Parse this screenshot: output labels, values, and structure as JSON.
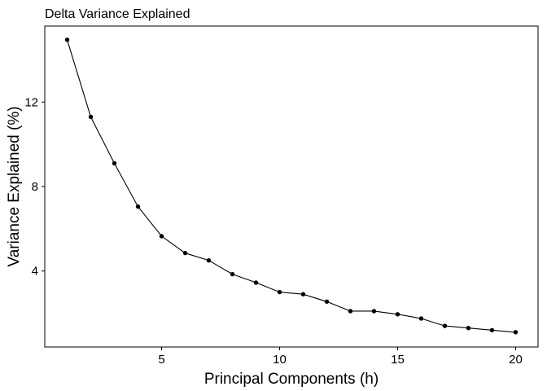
{
  "chart_data": {
    "type": "line",
    "title": "Delta Variance Explained",
    "xlabel": "Principal Components (h)",
    "ylabel": "Variance Explained (%)",
    "x": [
      1,
      2,
      3,
      4,
      5,
      6,
      7,
      8,
      9,
      10,
      11,
      12,
      13,
      14,
      15,
      16,
      17,
      18,
      19,
      20
    ],
    "series": [
      {
        "values": [
          14.95,
          11.3,
          9.1,
          7.05,
          5.65,
          4.85,
          4.5,
          3.85,
          3.45,
          3.0,
          2.9,
          2.55,
          2.1,
          2.1,
          1.95,
          1.75,
          1.4,
          1.3,
          1.2,
          1.1
        ]
      }
    ],
    "xlim": [
      0.05,
      20.95
    ],
    "ylim": [
      0.4,
      15.6
    ],
    "xticks": [
      5,
      10,
      15,
      20
    ],
    "yticks": [
      4,
      8,
      12
    ],
    "xtick_labels": [
      "5",
      "10",
      "15",
      "20"
    ],
    "ytick_labels": [
      "4",
      "8",
      "12"
    ],
    "grid": false,
    "line_color": "#000000",
    "point_color": "#000000"
  }
}
